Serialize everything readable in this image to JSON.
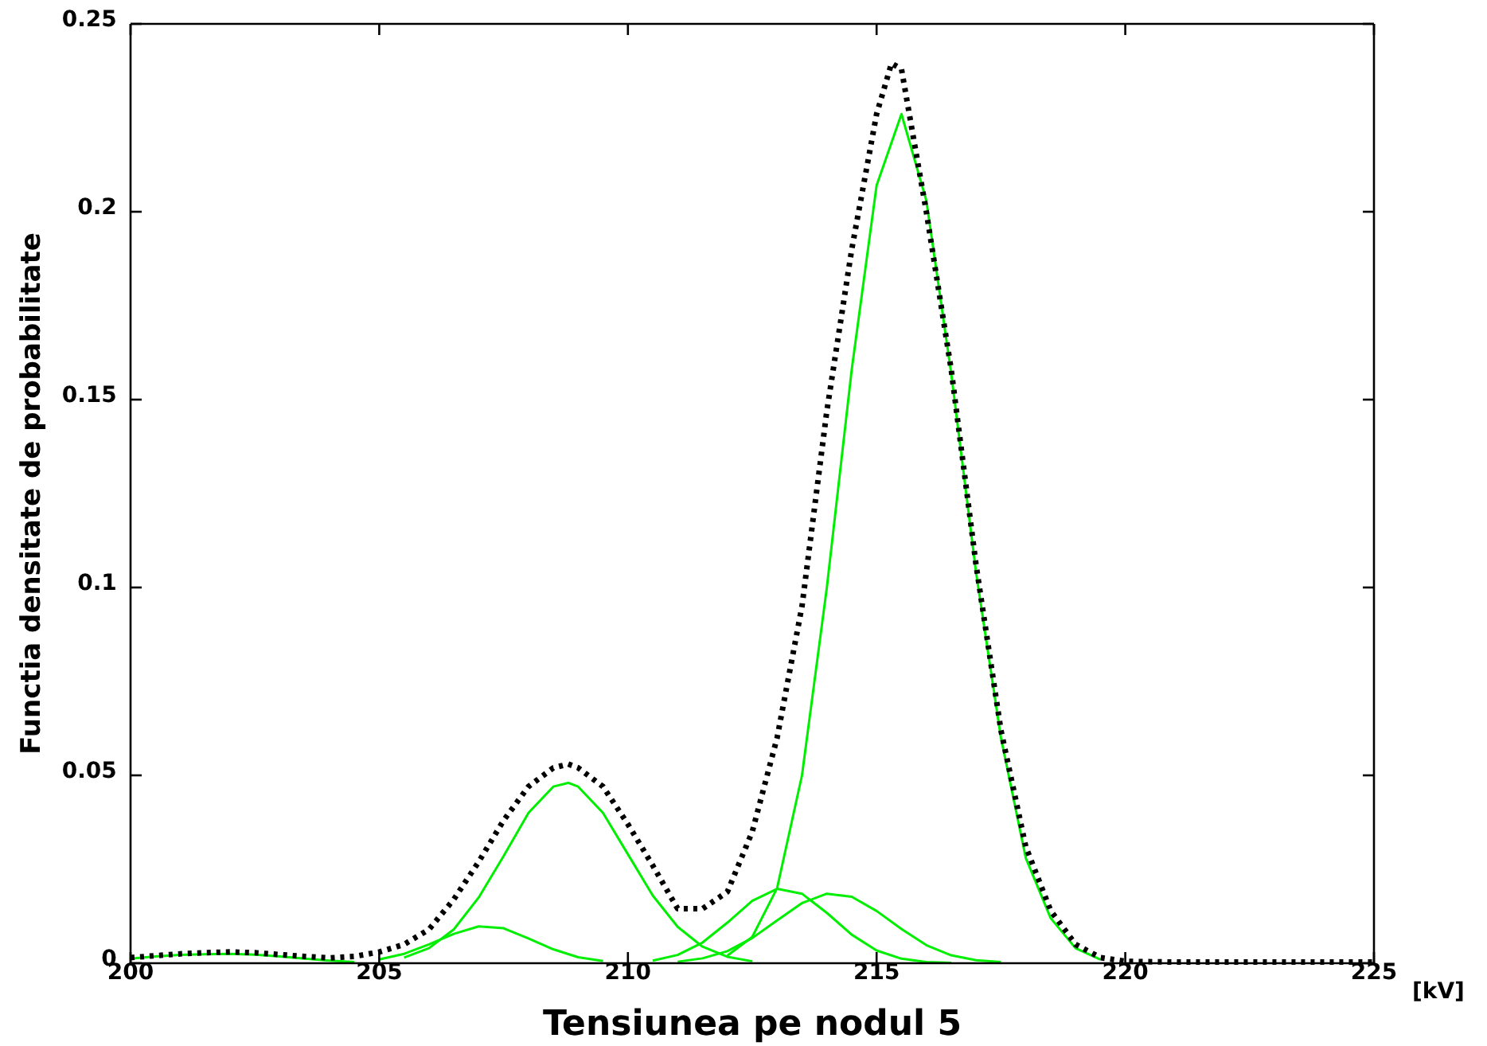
{
  "chart_data": {
    "type": "line",
    "xlabel": "Tensiunea pe nodul 5",
    "ylabel": "Functia densitate de probabilitate",
    "annotations": [
      "[kV]"
    ],
    "xlim": [
      200,
      225
    ],
    "ylim": [
      0,
      0.25
    ],
    "xticks": [
      200,
      205,
      210,
      215,
      220,
      225
    ],
    "yticks": [
      0,
      0.05,
      0.1,
      0.15,
      0.2,
      0.25
    ],
    "grid": false,
    "marker": "none",
    "series": [
      {
        "color": "#00ee00",
        "line_style": "solid",
        "x": [
          200,
          200.5,
          201,
          201.5,
          202,
          202.5,
          203,
          203.5,
          204,
          204.5
        ],
        "values": [
          0.0012,
          0.0018,
          0.0022,
          0.0024,
          0.0025,
          0.0023,
          0.0018,
          0.0012,
          0.0007,
          0.0003
        ]
      },
      {
        "color": "#00ee00",
        "line_style": "solid",
        "x": [
          205,
          205.5,
          206,
          206.5,
          207,
          207.5,
          208,
          208.5,
          209,
          209.5
        ],
        "values": [
          0.001,
          0.0025,
          0.005,
          0.0078,
          0.0098,
          0.0093,
          0.0066,
          0.0037,
          0.0016,
          0.0006
        ]
      },
      {
        "color": "#00ee00",
        "line_style": "solid",
        "x": [
          205.5,
          206,
          206.5,
          207,
          207.5,
          208,
          208.5,
          208.8,
          209,
          209.5,
          210,
          210.5,
          211,
          211.5,
          212,
          212.5
        ],
        "values": [
          0.0015,
          0.004,
          0.009,
          0.0175,
          0.0285,
          0.04,
          0.047,
          0.048,
          0.047,
          0.04,
          0.029,
          0.018,
          0.0097,
          0.0044,
          0.0017,
          0.0005
        ]
      },
      {
        "color": "#00ee00",
        "line_style": "solid",
        "x": [
          210.5,
          211,
          211.5,
          212,
          212.5,
          213,
          213.5,
          214,
          214.5,
          215,
          215.5,
          216,
          216.5
        ],
        "values": [
          0.0007,
          0.0022,
          0.0055,
          0.0108,
          0.0166,
          0.0198,
          0.0185,
          0.0134,
          0.0076,
          0.0034,
          0.0012,
          0.0003,
          0.0001
        ]
      },
      {
        "color": "#00ee00",
        "line_style": "solid",
        "x": [
          211,
          211.5,
          212,
          212.5,
          213,
          213.5,
          214,
          214.5,
          215,
          215.5,
          216,
          216.5,
          217,
          217.5
        ],
        "values": [
          0.0004,
          0.0013,
          0.0032,
          0.0067,
          0.0114,
          0.016,
          0.0185,
          0.0177,
          0.0139,
          0.0091,
          0.0048,
          0.0021,
          0.0008,
          0.0003
        ]
      },
      {
        "color": "#00ee00",
        "line_style": "solid",
        "x": [
          212,
          212.5,
          213,
          213.5,
          214,
          214.5,
          215,
          215.5,
          216,
          216.5,
          217,
          217.5,
          218,
          218.5,
          219,
          219.5
        ],
        "values": [
          0.002,
          0.007,
          0.02,
          0.05,
          0.1,
          0.158,
          0.207,
          0.226,
          0.203,
          0.157,
          0.104,
          0.06,
          0.028,
          0.012,
          0.004,
          0.001
        ]
      },
      {
        "color": "#000000",
        "line_style": "dotted",
        "x": [
          200,
          200.5,
          201,
          201.5,
          202,
          202.5,
          203,
          203.5,
          204,
          204.5,
          205,
          205.5,
          206,
          206.5,
          207,
          207.5,
          208,
          208.5,
          208.8,
          209,
          209.5,
          210,
          210.5,
          211,
          211.5,
          212,
          212.5,
          213,
          213.5,
          214,
          214.5,
          215,
          215.3,
          215.5,
          216,
          216.5,
          217,
          217.5,
          218,
          218.5,
          219,
          219.5,
          220,
          221,
          222,
          223,
          224,
          225
        ],
        "values": [
          0.0015,
          0.002,
          0.0025,
          0.0028,
          0.003,
          0.0028,
          0.0023,
          0.0018,
          0.0014,
          0.0018,
          0.003,
          0.005,
          0.009,
          0.017,
          0.027,
          0.038,
          0.047,
          0.052,
          0.053,
          0.052,
          0.047,
          0.037,
          0.026,
          0.0145,
          0.0145,
          0.019,
          0.035,
          0.06,
          0.095,
          0.147,
          0.19,
          0.226,
          0.2395,
          0.238,
          0.2,
          0.158,
          0.106,
          0.062,
          0.031,
          0.014,
          0.005,
          0.0015,
          0.0005,
          0.0003,
          0.0003,
          0.0003,
          0.0003,
          0.0003
        ]
      }
    ]
  }
}
